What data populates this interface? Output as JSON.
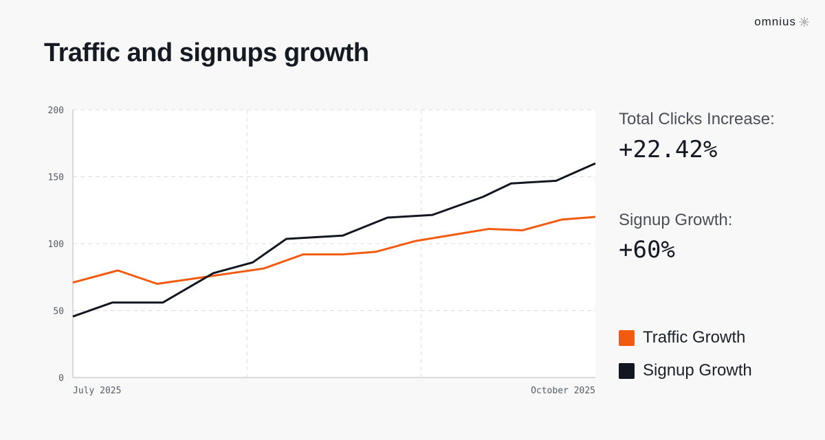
{
  "title": "Traffic and signups growth",
  "brand": "omnius",
  "stats": [
    {
      "label": "Total Clicks Increase:",
      "value": "+22.42%"
    },
    {
      "label": "Signup Growth:",
      "value": "+60%"
    }
  ],
  "legend": [
    {
      "label": "Traffic Growth",
      "color": "#f15a0f"
    },
    {
      "label": "Signup Growth",
      "color": "#121620"
    }
  ],
  "chart_data": {
    "type": "line",
    "title": "Traffic and signups growth",
    "xlabel": "",
    "ylabel": "",
    "x_unit": "days since July 1, 2025",
    "xlim": [
      0,
      93
    ],
    "ylim": [
      0,
      200
    ],
    "yticks": [
      0,
      50,
      100,
      150,
      200
    ],
    "x_tick_labels": [
      {
        "x": 0,
        "label": "July 2025"
      },
      {
        "x": 93,
        "label": "October 2025"
      }
    ],
    "x_gridlines": [
      31,
      62
    ],
    "grid": true,
    "legend_position": "right",
    "series": [
      {
        "name": "Traffic Growth",
        "color": "#f15a0f",
        "x": [
          0,
          8,
          15,
          34,
          41,
          48,
          54,
          61,
          74,
          80,
          87,
          93
        ],
        "y": [
          71,
          80,
          70,
          81.5,
          92,
          92,
          94,
          102,
          111,
          110,
          118,
          120
        ]
      },
      {
        "name": "Signup Growth",
        "color": "#121620",
        "x": [
          0,
          7,
          16,
          25,
          32,
          38,
          48,
          56,
          64,
          73,
          78,
          86,
          93
        ],
        "y": [
          45.6,
          56,
          56,
          78,
          86,
          103.6,
          106,
          119.5,
          121.5,
          135,
          145,
          147,
          160
        ]
      }
    ]
  }
}
